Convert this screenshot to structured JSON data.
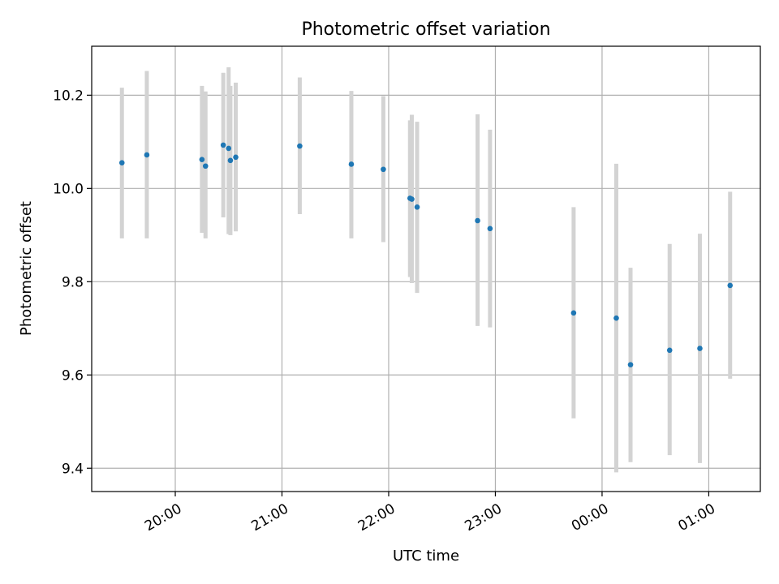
{
  "chart_data": {
    "type": "scatter",
    "title": "Photometric offset variation",
    "xlabel": "UTC time",
    "ylabel": "Photometric offset",
    "grid": true,
    "legend": "none",
    "xlim": [
      "2000-01-01T19:13:00",
      "2000-01-02T01:29:00"
    ],
    "ylim": [
      9.35,
      10.305
    ],
    "x_ticks": [
      {
        "t": "2000-01-01T20:00",
        "label": "20:00"
      },
      {
        "t": "2000-01-01T21:00",
        "label": "21:00"
      },
      {
        "t": "2000-01-01T22:00",
        "label": "22:00"
      },
      {
        "t": "2000-01-01T23:00",
        "label": "23:00"
      },
      {
        "t": "2000-01-02T00:00",
        "label": "00:00"
      },
      {
        "t": "2000-01-02T01:00",
        "label": "01:00"
      }
    ],
    "y_ticks": [
      {
        "v": 9.4,
        "label": "9.4"
      },
      {
        "v": 9.6,
        "label": "9.6"
      },
      {
        "v": 9.8,
        "label": "9.8"
      },
      {
        "v": 10.0,
        "label": "10.0"
      },
      {
        "v": 10.2,
        "label": "10.2"
      }
    ],
    "colors": {
      "marker": "#1f77b4",
      "errorbar": "#d3d3d3",
      "grid": "#b0b0b0",
      "axes": "#000000"
    },
    "series": [
      {
        "points": [
          {
            "t": "2000-01-01T19:30",
            "y": 10.055,
            "lo": 9.893,
            "hi": 10.216
          },
          {
            "t": "2000-01-01T19:44",
            "y": 10.072,
            "lo": 9.893,
            "hi": 10.252
          },
          {
            "t": "2000-01-01T20:15",
            "y": 10.062,
            "lo": 9.905,
            "hi": 10.22
          },
          {
            "t": "2000-01-01T20:17",
            "y": 10.048,
            "lo": 9.893,
            "hi": 10.208
          },
          {
            "t": "2000-01-01T20:27",
            "y": 10.093,
            "lo": 9.938,
            "hi": 10.248
          },
          {
            "t": "2000-01-01T20:30",
            "y": 10.086,
            "lo": 9.902,
            "hi": 10.26
          },
          {
            "t": "2000-01-01T20:31",
            "y": 10.06,
            "lo": 9.9,
            "hi": 10.22
          },
          {
            "t": "2000-01-01T20:34",
            "y": 10.067,
            "lo": 9.908,
            "hi": 10.227
          },
          {
            "t": "2000-01-01T21:10",
            "y": 10.091,
            "lo": 9.945,
            "hi": 10.238
          },
          {
            "t": "2000-01-01T21:39",
            "y": 10.052,
            "lo": 9.893,
            "hi": 10.209
          },
          {
            "t": "2000-01-01T21:57",
            "y": 10.041,
            "lo": 9.885,
            "hi": 10.198
          },
          {
            "t": "2000-01-01T22:12",
            "y": 9.979,
            "lo": 9.81,
            "hi": 10.146
          },
          {
            "t": "2000-01-01T22:13",
            "y": 9.977,
            "lo": 9.797,
            "hi": 10.158
          },
          {
            "t": "2000-01-01T22:16",
            "y": 9.96,
            "lo": 9.776,
            "hi": 10.143
          },
          {
            "t": "2000-01-01T22:50",
            "y": 9.931,
            "lo": 9.705,
            "hi": 10.159
          },
          {
            "t": "2000-01-01T22:57",
            "y": 9.914,
            "lo": 9.702,
            "hi": 10.126
          },
          {
            "t": "2000-01-01T23:44",
            "y": 9.733,
            "lo": 9.507,
            "hi": 9.96
          },
          {
            "t": "2000-01-02T00:08",
            "y": 9.722,
            "lo": 9.391,
            "hi": 10.053
          },
          {
            "t": "2000-01-02T00:16",
            "y": 9.622,
            "lo": 9.413,
            "hi": 9.83
          },
          {
            "t": "2000-01-02T00:38",
            "y": 9.653,
            "lo": 9.428,
            "hi": 9.881
          },
          {
            "t": "2000-01-02T00:55",
            "y": 9.657,
            "lo": 9.411,
            "hi": 9.903
          },
          {
            "t": "2000-01-02T01:12",
            "y": 9.792,
            "lo": 9.592,
            "hi": 9.993
          }
        ]
      }
    ]
  }
}
